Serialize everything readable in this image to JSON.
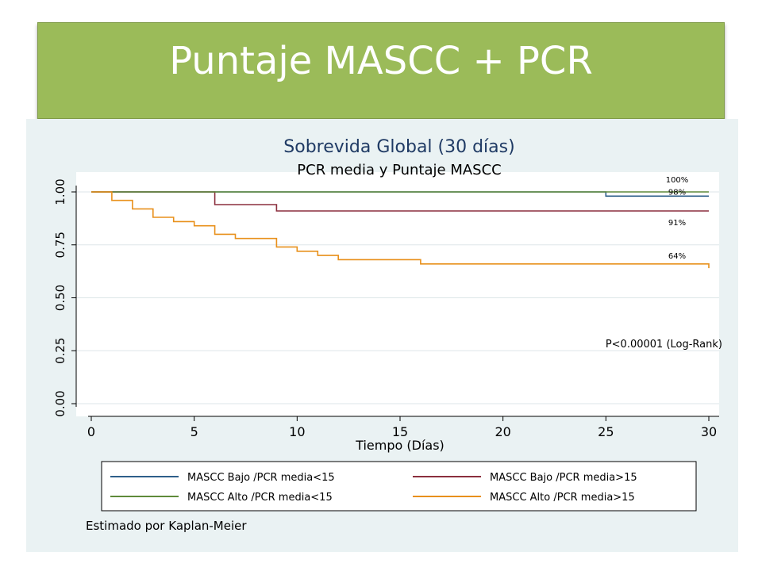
{
  "slide": {
    "title": "Puntaje MASCC + PCR"
  },
  "chart_data": {
    "type": "line",
    "step": true,
    "title": "Sobrevida Global (30 días)",
    "subtitle": "PCR media y Puntaje MASCC",
    "xlabel": "Tiempo (Días)",
    "ylabel": "",
    "xlim": [
      0,
      30
    ],
    "ylim": [
      0,
      1
    ],
    "xticks": [
      0,
      5,
      10,
      15,
      20,
      25,
      30
    ],
    "xtick_labels": [
      "0",
      "5",
      "10",
      "15",
      "20",
      "25",
      "30"
    ],
    "yticks": [
      0,
      0.25,
      0.5,
      0.75,
      1
    ],
    "ytick_labels": [
      "0.00",
      "0.25",
      "0.50",
      "0.75",
      "1.00"
    ],
    "grid": true,
    "legend_position": "bottom",
    "series": [
      {
        "name": "MASCC Bajo /PCR media<15",
        "color": "#2e5f8a",
        "points": [
          [
            0,
            1.0
          ],
          [
            25,
            1.0
          ],
          [
            25,
            0.98
          ],
          [
            30,
            0.98
          ]
        ],
        "end_label": "98%"
      },
      {
        "name": "MASCC Bajo /PCR media>15",
        "color": "#8b2f3e",
        "points": [
          [
            0,
            1.0
          ],
          [
            6,
            1.0
          ],
          [
            6,
            0.94
          ],
          [
            9,
            0.94
          ],
          [
            9,
            0.91
          ],
          [
            30,
            0.91
          ]
        ],
        "end_label": "91%"
      },
      {
        "name": "MASCC Alto /PCR media<15",
        "color": "#5f8a3a",
        "points": [
          [
            0,
            1.0
          ],
          [
            30,
            1.0
          ]
        ],
        "end_label": "100%"
      },
      {
        "name": "MASCC Alto /PCR media>15",
        "color": "#e8901b",
        "points": [
          [
            0,
            1.0
          ],
          [
            1,
            1.0
          ],
          [
            1,
            0.96
          ],
          [
            2,
            0.96
          ],
          [
            2,
            0.92
          ],
          [
            3,
            0.92
          ],
          [
            3,
            0.88
          ],
          [
            4,
            0.88
          ],
          [
            4,
            0.86
          ],
          [
            5,
            0.86
          ],
          [
            5,
            0.84
          ],
          [
            6,
            0.84
          ],
          [
            6,
            0.8
          ],
          [
            7,
            0.8
          ],
          [
            7,
            0.78
          ],
          [
            9,
            0.78
          ],
          [
            9,
            0.74
          ],
          [
            10,
            0.74
          ],
          [
            10,
            0.72
          ],
          [
            11,
            0.72
          ],
          [
            11,
            0.7
          ],
          [
            12,
            0.7
          ],
          [
            12,
            0.68
          ],
          [
            16,
            0.68
          ],
          [
            16,
            0.66
          ],
          [
            30,
            0.66
          ],
          [
            30,
            0.64
          ]
        ],
        "end_label": "64%"
      }
    ],
    "annotation": "P<0.00001 (Log-Rank)",
    "footnote": "Estimado por Kaplan-Meier"
  }
}
